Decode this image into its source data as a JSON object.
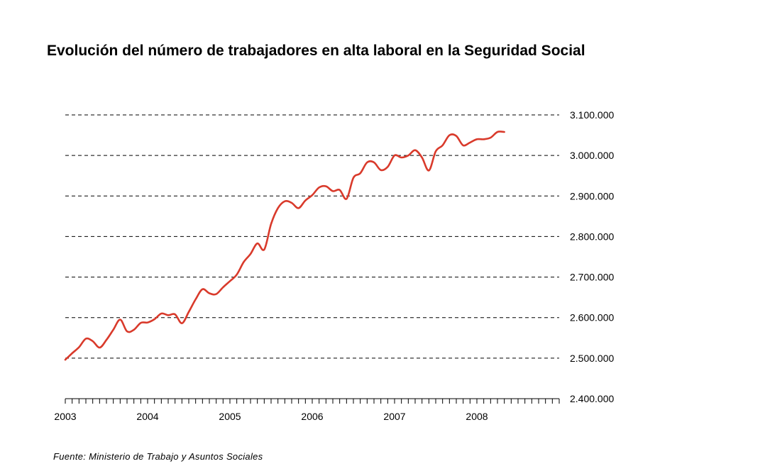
{
  "chart_data": {
    "type": "line",
    "title": "Evolución del número de trabajadores en alta laboral en la Seguridad Social",
    "source": "Fuente: Ministerio de Trabajo y Asuntos Sociales",
    "xlabel": "",
    "ylabel": "",
    "x_tick_labels": [
      "2003",
      "2004",
      "2005",
      "2006",
      "2007",
      "2008"
    ],
    "y_ticks": [
      2400000,
      2500000,
      2600000,
      2700000,
      2800000,
      2900000,
      3000000,
      3100000
    ],
    "y_tick_labels": [
      "2.400.000",
      "2.500.000",
      "2.600.000",
      "2.700.000",
      "2.800.000",
      "2.900.000",
      "3.000.000",
      "3.100.000"
    ],
    "ylim": [
      2400000,
      3100000
    ],
    "xlim": [
      2003.0,
      2009.0
    ],
    "grid": "horizontal-dashed",
    "y_axis_side": "right",
    "line_color": "#d93a2b",
    "series": [
      {
        "x": [
          2003.0,
          2003.083,
          2003.167,
          2003.25,
          2003.333,
          2003.417,
          2003.5,
          2003.583,
          2003.667,
          2003.75,
          2003.833,
          2003.917,
          2004.0,
          2004.083,
          2004.167,
          2004.25,
          2004.333,
          2004.417,
          2004.5,
          2004.583,
          2004.667,
          2004.75,
          2004.833,
          2004.917,
          2005.0,
          2005.083,
          2005.167,
          2005.25,
          2005.333,
          2005.417,
          2005.5,
          2005.583,
          2005.667,
          2005.75,
          2005.833,
          2005.917,
          2006.0,
          2006.083,
          2006.167,
          2006.25,
          2006.333,
          2006.417,
          2006.5,
          2006.583,
          2006.667,
          2006.75,
          2006.833,
          2006.917,
          2007.0,
          2007.083,
          2007.167,
          2007.25,
          2007.333,
          2007.417,
          2007.5,
          2007.583,
          2007.667,
          2007.75,
          2007.833,
          2007.917,
          2008.0,
          2008.083,
          2008.167,
          2008.25,
          2008.333
        ],
        "values": [
          2496000,
          2512000,
          2527000,
          2548000,
          2542000,
          2526000,
          2545000,
          2570000,
          2595000,
          2566000,
          2570000,
          2587000,
          2588000,
          2596000,
          2610000,
          2606000,
          2608000,
          2586000,
          2614000,
          2645000,
          2670000,
          2660000,
          2658000,
          2675000,
          2690000,
          2706000,
          2737000,
          2757000,
          2783000,
          2768000,
          2831000,
          2870000,
          2887000,
          2883000,
          2870000,
          2889000,
          2902000,
          2921000,
          2924000,
          2912000,
          2915000,
          2893000,
          2945000,
          2956000,
          2983000,
          2983000,
          2964000,
          2972000,
          3000000,
          2995000,
          3000000,
          3013000,
          2995000,
          2963000,
          3010000,
          3025000,
          3050000,
          3048000,
          3025000,
          3032000,
          3040000,
          3040000,
          3044000,
          3058000,
          3058000
        ]
      }
    ]
  }
}
